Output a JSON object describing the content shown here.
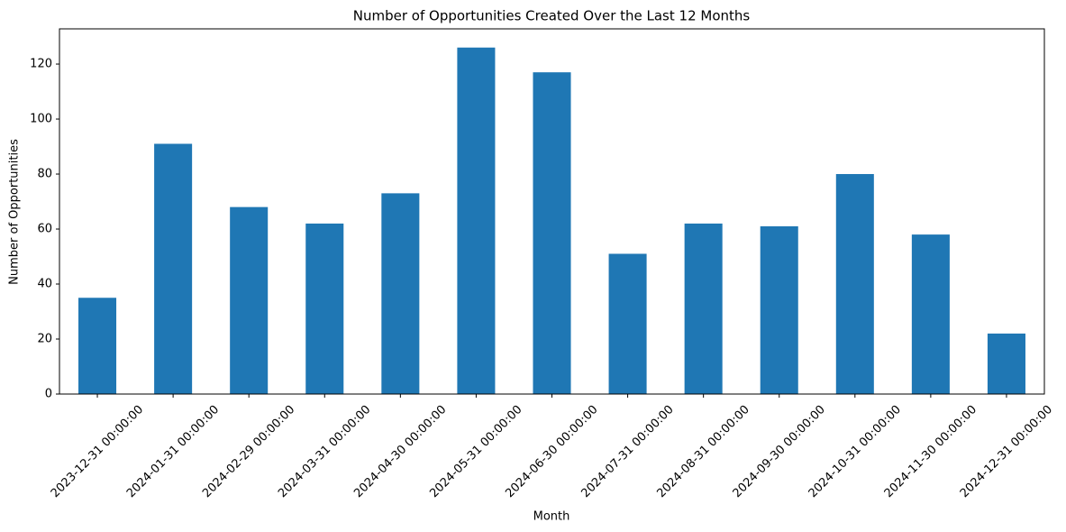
{
  "chart_data": {
    "type": "bar",
    "title": "Number of Opportunities Created Over the Last 12 Months",
    "x_label": "Month",
    "y_label": "Number of Opportunities",
    "categories": [
      "2023-12-31 00:00:00",
      "2024-01-31 00:00:00",
      "2024-02-29 00:00:00",
      "2024-03-31 00:00:00",
      "2024-04-30 00:00:00",
      "2024-05-31 00:00:00",
      "2024-06-30 00:00:00",
      "2024-07-31 00:00:00",
      "2024-08-31 00:00:00",
      "2024-09-30 00:00:00",
      "2024-10-31 00:00:00",
      "2024-11-30 00:00:00",
      "2024-12-31 00:00:00"
    ],
    "values": [
      35,
      91,
      68,
      62,
      73,
      126,
      117,
      51,
      62,
      61,
      80,
      58,
      22
    ],
    "color": "#1f77b4",
    "ylim": [
      0,
      132.8
    ],
    "yticks": [
      0,
      20,
      40,
      60,
      80,
      100,
      120
    ],
    "grid": false
  }
}
